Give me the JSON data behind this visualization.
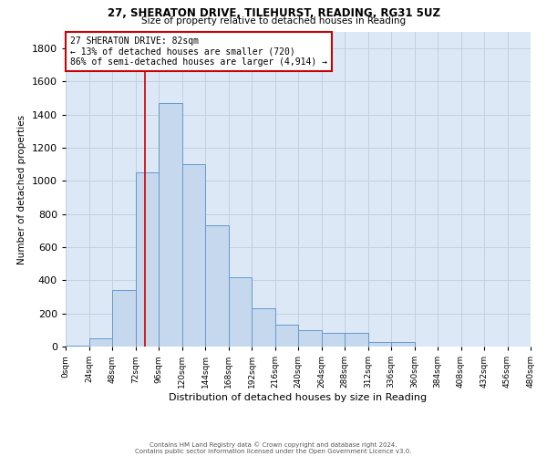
{
  "title_line1": "27, SHERATON DRIVE, TILEHURST, READING, RG31 5UZ",
  "title_line2": "Size of property relative to detached houses in Reading",
  "xlabel": "Distribution of detached houses by size in Reading",
  "ylabel": "Number of detached properties",
  "bar_color": "#c5d8ee",
  "bar_edge_color": "#6699cc",
  "grid_color": "#c0ccdd",
  "background_color": "#dce8f5",
  "bin_width": 24,
  "bins": [
    0,
    24,
    48,
    72,
    96,
    120,
    144,
    168,
    192,
    216,
    240,
    264,
    288,
    312,
    336,
    360,
    384,
    408,
    432,
    456,
    480
  ],
  "bar_heights": [
    5,
    50,
    340,
    1050,
    1470,
    1100,
    730,
    420,
    230,
    130,
    100,
    80,
    80,
    28,
    28,
    0,
    0,
    0,
    0,
    0
  ],
  "property_size": 82,
  "annotation_text": "27 SHERATON DRIVE: 82sqm\n← 13% of detached houses are smaller (720)\n86% of semi-detached houses are larger (4,914) →",
  "annotation_box_color": "white",
  "annotation_box_edge_color": "#cc0000",
  "vline_color": "#cc0000",
  "vline_x": 82,
  "ylim": [
    0,
    1900
  ],
  "yticks": [
    0,
    200,
    400,
    600,
    800,
    1000,
    1200,
    1400,
    1600,
    1800
  ],
  "footer_line1": "Contains HM Land Registry data © Crown copyright and database right 2024.",
  "footer_line2": "Contains public sector information licensed under the Open Government Licence v3.0."
}
